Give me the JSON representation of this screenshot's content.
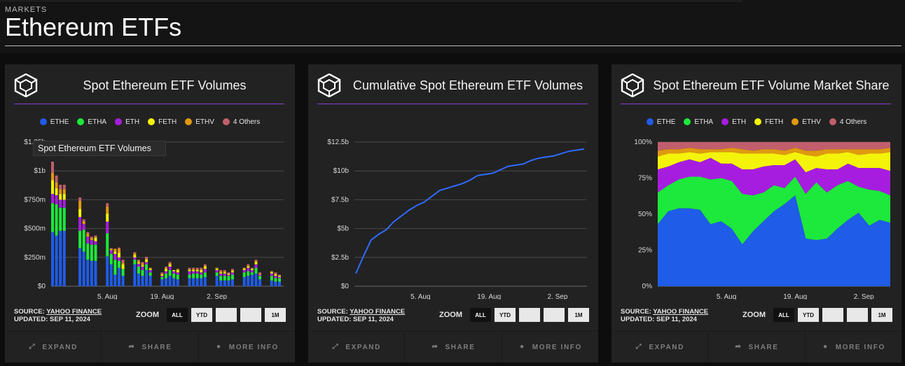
{
  "header": {
    "kicker": "MARKETS",
    "title": "Ethereum ETFs"
  },
  "legend": [
    {
      "name": "ETHE",
      "color": "#1f5ce8"
    },
    {
      "name": "ETHA",
      "color": "#1de83c"
    },
    {
      "name": "ETH",
      "color": "#a71de0"
    },
    {
      "name": "FETH",
      "color": "#f4f40a"
    },
    {
      "name": "ETHV",
      "color": "#e09a10"
    },
    {
      "name": "4 Others",
      "color": "#c25e6c"
    }
  ],
  "card_common": {
    "source_prefix": "SOURCE:",
    "source_name": "YAHOO FINANCE",
    "updated": "UPDATED: SEP 11, 2024",
    "zoom_label": "ZOOM",
    "zoom_buttons": [
      "ALL",
      "YTD",
      "",
      "",
      "1M"
    ],
    "footer": {
      "expand": "EXPAND",
      "share": "SHARE",
      "more_info": "MORE INFO"
    }
  },
  "cards": [
    {
      "title": "Spot Ethereum ETF Volumes",
      "tooltip": "Spot Ethereum ETF Volumes"
    },
    {
      "title": "Cumulative Spot Ethereum ETF Volumes"
    },
    {
      "title": "Spot Ethereum ETF Volume Market Share"
    }
  ],
  "chart_data": [
    {
      "type": "bar",
      "title": "Spot Ethereum ETF Volumes",
      "stacked": true,
      "x_ticks": [
        "5. Aug",
        "19. Aug",
        "2. Sep"
      ],
      "y_ticks": [
        "$0",
        "$250m",
        "$500m",
        "$750m",
        "$1b",
        "$1.25b"
      ],
      "ylim": [
        0,
        1250
      ],
      "unit": "millions USD",
      "days": [
        {
          "d": 0,
          "v": [
            470,
            250,
            80,
            120,
            60,
            100
          ]
        },
        {
          "d": 1,
          "v": [
            440,
            270,
            80,
            60,
            50,
            60
          ]
        },
        {
          "d": 2,
          "v": [
            480,
            200,
            70,
            50,
            40,
            40
          ]
        },
        {
          "d": 3,
          "v": [
            480,
            200,
            70,
            50,
            40,
            40
          ]
        },
        {
          "d": 7,
          "v": [
            330,
            150,
            120,
            70,
            70,
            30
          ]
        },
        {
          "d": 8,
          "v": [
            300,
            190,
            50,
            0,
            25,
            15
          ]
        },
        {
          "d": 9,
          "v": [
            230,
            140,
            60,
            0,
            25,
            15
          ]
        },
        {
          "d": 10,
          "v": [
            220,
            140,
            40,
            0,
            20,
            10
          ]
        },
        {
          "d": 11,
          "v": [
            220,
            140,
            30,
            30,
            10,
            10
          ]
        },
        {
          "d": 14,
          "v": [
            260,
            200,
            100,
            70,
            60,
            30
          ]
        },
        {
          "d": 15,
          "v": [
            190,
            90,
            30,
            0,
            15,
            5
          ]
        },
        {
          "d": 16,
          "v": [
            100,
            130,
            50,
            20,
            25,
            0
          ]
        },
        {
          "d": 17,
          "v": [
            160,
            60,
            30,
            40,
            35,
            10
          ]
        },
        {
          "d": 18,
          "v": [
            90,
            60,
            0,
            40,
            15,
            25
          ]
        },
        {
          "d": 21,
          "v": [
            190,
            40,
            20,
            20,
            15,
            10
          ]
        },
        {
          "d": 22,
          "v": [
            110,
            60,
            25,
            10,
            15,
            10
          ]
        },
        {
          "d": 23,
          "v": [
            90,
            50,
            30,
            10,
            20,
            10
          ]
        },
        {
          "d": 24,
          "v": [
            140,
            50,
            20,
            20,
            10,
            15
          ]
        },
        {
          "d": 25,
          "v": [
            90,
            30,
            20,
            10,
            10,
            0
          ]
        },
        {
          "d": 28,
          "v": [
            60,
            20,
            10,
            10,
            10,
            10
          ]
        },
        {
          "d": 29,
          "v": [
            70,
            40,
            20,
            20,
            10,
            10
          ]
        },
        {
          "d": 30,
          "v": [
            90,
            50,
            30,
            20,
            10,
            10
          ]
        },
        {
          "d": 31,
          "v": [
            70,
            40,
            20,
            10,
            0,
            0
          ]
        },
        {
          "d": 32,
          "v": [
            60,
            40,
            20,
            20,
            10,
            0
          ]
        },
        {
          "d": 35,
          "v": [
            70,
            30,
            30,
            10,
            10,
            10
          ]
        },
        {
          "d": 36,
          "v": [
            70,
            40,
            20,
            10,
            10,
            10
          ]
        },
        {
          "d": 37,
          "v": [
            70,
            40,
            20,
            10,
            10,
            10
          ]
        },
        {
          "d": 38,
          "v": [
            70,
            30,
            20,
            20,
            10,
            10
          ]
        },
        {
          "d": 39,
          "v": [
            80,
            40,
            30,
            20,
            10,
            10
          ]
        },
        {
          "d": 42,
          "v": [
            90,
            30,
            20,
            10,
            10,
            0
          ]
        },
        {
          "d": 43,
          "v": [
            50,
            40,
            20,
            10,
            10,
            10
          ]
        },
        {
          "d": 44,
          "v": [
            50,
            40,
            20,
            10,
            10,
            10
          ]
        },
        {
          "d": 45,
          "v": [
            50,
            40,
            10,
            10,
            0,
            10
          ]
        },
        {
          "d": 46,
          "v": [
            60,
            40,
            20,
            10,
            10,
            10
          ]
        },
        {
          "d": 49,
          "v": [
            80,
            40,
            20,
            10,
            10,
            0
          ]
        },
        {
          "d": 50,
          "v": [
            90,
            40,
            30,
            10,
            10,
            10
          ]
        },
        {
          "d": 51,
          "v": [
            100,
            20,
            20,
            10,
            0,
            10
          ]
        },
        {
          "d": 52,
          "v": [
            110,
            50,
            30,
            20,
            10,
            10
          ]
        },
        {
          "d": 53,
          "v": [
            60,
            30,
            10,
            0,
            10,
            10
          ]
        },
        {
          "d": 56,
          "v": [
            50,
            40,
            20,
            10,
            10,
            0
          ]
        },
        {
          "d": 57,
          "v": [
            40,
            30,
            20,
            10,
            10,
            10
          ]
        },
        {
          "d": 58,
          "v": [
            40,
            30,
            10,
            10,
            0,
            10
          ]
        }
      ]
    },
    {
      "type": "line",
      "title": "Cumulative Spot Ethereum ETF Volumes",
      "x_ticks": [
        "5. Aug",
        "19. Aug",
        "2. Sep"
      ],
      "y_ticks": [
        "$0",
        "$2.5b",
        "$5b",
        "$7.5b",
        "$10b",
        "$12.5b"
      ],
      "ylim": [
        0,
        12.5
      ],
      "unit": "billions USD",
      "points": [
        [
          0,
          1.1
        ],
        [
          1,
          2.6
        ],
        [
          2,
          4.0
        ],
        [
          3,
          4.5
        ],
        [
          4,
          4.9
        ],
        [
          5,
          5.6
        ],
        [
          6,
          6.1
        ],
        [
          7,
          6.6
        ],
        [
          8,
          7.0
        ],
        [
          9,
          7.3
        ],
        [
          10,
          7.8
        ],
        [
          11,
          8.3
        ],
        [
          12,
          8.5
        ],
        [
          13,
          8.7
        ],
        [
          14,
          8.9
        ],
        [
          15,
          9.2
        ],
        [
          16,
          9.6
        ],
        [
          17,
          9.7
        ],
        [
          18,
          9.8
        ],
        [
          19,
          10.1
        ],
        [
          20,
          10.4
        ],
        [
          21,
          10.5
        ],
        [
          22,
          10.6
        ],
        [
          23,
          10.9
        ],
        [
          24,
          11.1
        ],
        [
          25,
          11.2
        ],
        [
          26,
          11.3
        ],
        [
          27,
          11.5
        ],
        [
          28,
          11.7
        ],
        [
          29,
          11.8
        ],
        [
          30,
          11.9
        ]
      ]
    },
    {
      "type": "area",
      "title": "Spot Ethereum ETF Volume Market Share",
      "stacked": true,
      "x_ticks": [
        "5. Aug",
        "19. Aug",
        "2. Sep"
      ],
      "y_ticks": [
        "0%",
        "25%",
        "50%",
        "75%",
        "100%"
      ],
      "ylim": [
        0,
        100
      ],
      "unit": "percent",
      "points": [
        {
          "x": 0,
          "s": [
            43,
            22,
            16,
            9,
            4,
            6
          ]
        },
        {
          "x": 1,
          "s": [
            52,
            18,
            13,
            9,
            3,
            5
          ]
        },
        {
          "x": 2,
          "s": [
            54,
            20,
            12,
            6,
            3,
            5
          ]
        },
        {
          "x": 3,
          "s": [
            54,
            22,
            12,
            5,
            3,
            4
          ]
        },
        {
          "x": 4,
          "s": [
            53,
            23,
            10,
            6,
            3,
            5
          ]
        },
        {
          "x": 5,
          "s": [
            43,
            31,
            15,
            4,
            2,
            5
          ]
        },
        {
          "x": 6,
          "s": [
            45,
            30,
            10,
            8,
            2,
            5
          ]
        },
        {
          "x": 7,
          "s": [
            40,
            33,
            12,
            8,
            3,
            4
          ]
        },
        {
          "x": 8,
          "s": [
            29,
            35,
            17,
            11,
            3,
            5
          ]
        },
        {
          "x": 9,
          "s": [
            38,
            25,
            18,
            11,
            2,
            6
          ]
        },
        {
          "x": 10,
          "s": [
            45,
            20,
            18,
            9,
            3,
            5
          ]
        },
        {
          "x": 11,
          "s": [
            52,
            18,
            14,
            8,
            3,
            5
          ]
        },
        {
          "x": 12,
          "s": [
            57,
            11,
            16,
            7,
            3,
            6
          ]
        },
        {
          "x": 13,
          "s": [
            63,
            13,
            12,
            5,
            3,
            4
          ]
        },
        {
          "x": 14,
          "s": [
            33,
            31,
            15,
            12,
            3,
            6
          ]
        },
        {
          "x": 15,
          "s": [
            32,
            40,
            10,
            8,
            4,
            6
          ]
        },
        {
          "x": 16,
          "s": [
            33,
            32,
            16,
            11,
            3,
            5
          ]
        },
        {
          "x": 17,
          "s": [
            40,
            30,
            11,
            11,
            3,
            5
          ]
        },
        {
          "x": 18,
          "s": [
            46,
            27,
            12,
            8,
            2,
            5
          ]
        },
        {
          "x": 19,
          "s": [
            51,
            18,
            13,
            9,
            4,
            5
          ]
        },
        {
          "x": 20,
          "s": [
            42,
            25,
            15,
            10,
            3,
            5
          ]
        },
        {
          "x": 21,
          "s": [
            46,
            20,
            16,
            10,
            3,
            5
          ]
        },
        {
          "x": 22,
          "s": [
            44,
            19,
            17,
            13,
            3,
            4
          ]
        }
      ]
    }
  ]
}
